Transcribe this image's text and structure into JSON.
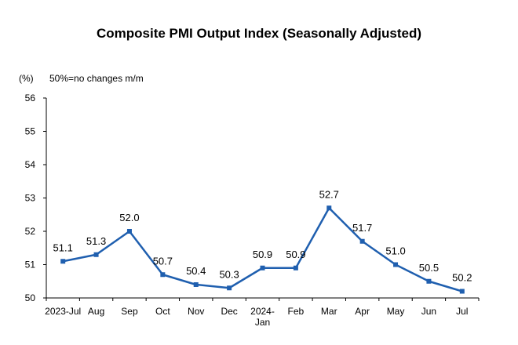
{
  "chart_data": {
    "type": "line",
    "title": "Composite PMI Output Index (Seasonally Adjusted)",
    "ylabel": "(%)",
    "note": "50%=no changes m/m",
    "ylim": [
      50,
      56
    ],
    "yticks": [
      "50",
      "51",
      "52",
      "53",
      "54",
      "55",
      "56"
    ],
    "categories": [
      "2023-Jul",
      "Aug",
      "Sep",
      "Oct",
      "Nov",
      "Dec",
      "2024-Jan",
      "Feb",
      "Mar",
      "Apr",
      "May",
      "Jun",
      "Jul"
    ],
    "category_lines": [
      [
        "2023-Jul"
      ],
      [
        "Aug"
      ],
      [
        "Sep"
      ],
      [
        "Oct"
      ],
      [
        "Nov"
      ],
      [
        "Dec"
      ],
      [
        "2024-",
        "Jan"
      ],
      [
        "Feb"
      ],
      [
        "Mar"
      ],
      [
        "Apr"
      ],
      [
        "May"
      ],
      [
        "Jun"
      ],
      [
        "Jul"
      ]
    ],
    "values": [
      51.1,
      51.3,
      52.0,
      50.7,
      50.4,
      50.3,
      50.9,
      50.9,
      52.7,
      51.7,
      51.0,
      50.5,
      50.2
    ],
    "data_labels": [
      "51.1",
      "51.3",
      "52.0",
      "50.7",
      "50.4",
      "50.3",
      "50.9",
      "50.9",
      "52.7",
      "51.7",
      "51.0",
      "50.5",
      "50.2"
    ],
    "line_color": "#1F5FAF",
    "grid": false
  }
}
